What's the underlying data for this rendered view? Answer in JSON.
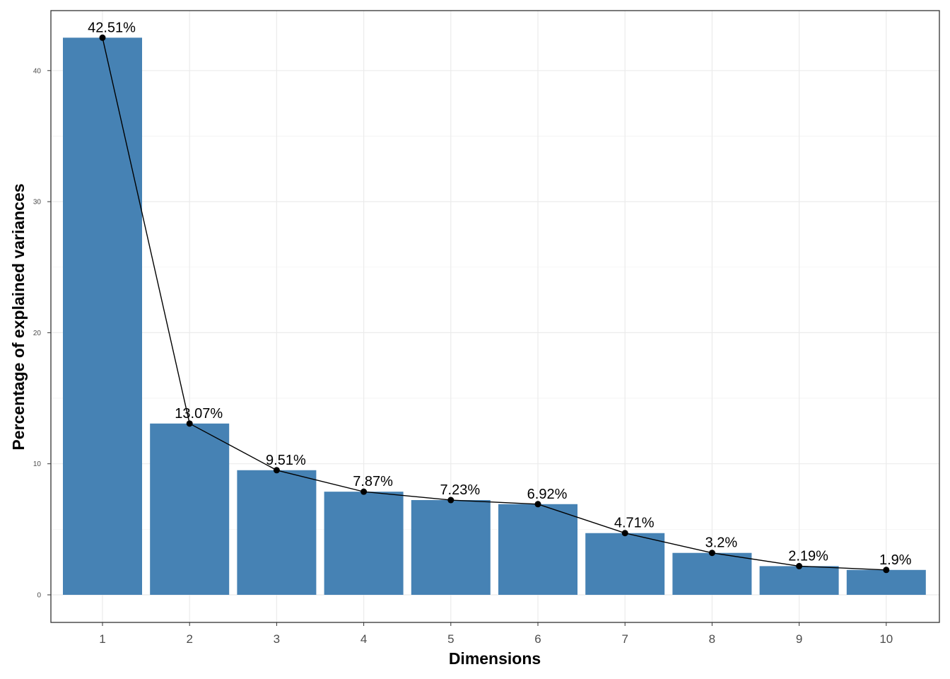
{
  "chart_data": {
    "type": "bar",
    "categories": [
      "1",
      "2",
      "3",
      "4",
      "5",
      "6",
      "7",
      "8",
      "9",
      "10"
    ],
    "values": [
      42.51,
      13.07,
      9.51,
      7.87,
      7.23,
      6.92,
      4.71,
      3.2,
      2.19,
      1.9
    ],
    "value_labels": [
      "42.51%",
      "13.07%",
      "9.51%",
      "7.87%",
      "7.23%",
      "6.92%",
      "4.71%",
      "3.2%",
      "2.19%",
      "1.9%"
    ],
    "overlay": "line-with-points",
    "xlabel": "Dimensions",
    "ylabel": "Percentage of explained variances",
    "yticks": [
      "0",
      "10",
      "20",
      "30",
      "40"
    ],
    "ylim": [
      -2.1,
      44.6
    ],
    "grid": true,
    "colors": {
      "bar": "#4682b4",
      "line": "#000000",
      "point": "#000000"
    }
  }
}
